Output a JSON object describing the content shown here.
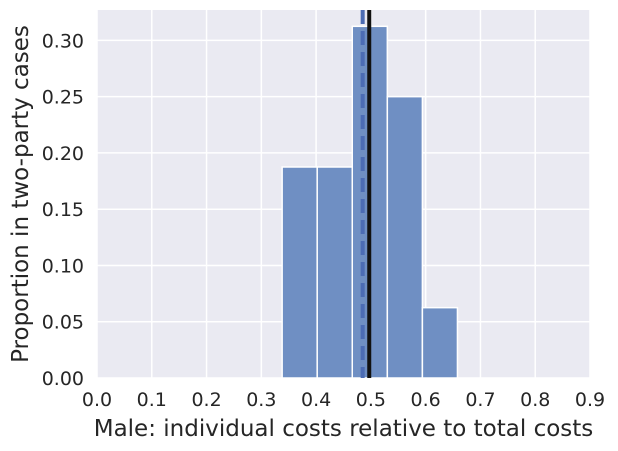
{
  "chart_data": {
    "type": "bar",
    "xlabel": "Male: individual costs relative to total costs",
    "ylabel": "Proportion in two-party cases",
    "xlim": [
      0.0,
      0.9
    ],
    "ylim": [
      0.0,
      0.327
    ],
    "xticks": [
      "0.0",
      "0.1",
      "0.2",
      "0.3",
      "0.4",
      "0.5",
      "0.6",
      "0.7",
      "0.8",
      "0.9"
    ],
    "yticks": [
      "0.00",
      "0.05",
      "0.10",
      "0.15",
      "0.20",
      "0.25",
      "0.30"
    ],
    "bins": [
      {
        "x0": 0.338,
        "x1": 0.402,
        "value": 0.1875
      },
      {
        "x0": 0.402,
        "x1": 0.466,
        "value": 0.1875
      },
      {
        "x0": 0.466,
        "x1": 0.53,
        "value": 0.3125
      },
      {
        "x0": 0.53,
        "x1": 0.594,
        "value": 0.25
      },
      {
        "x0": 0.594,
        "x1": 0.658,
        "value": 0.0625
      }
    ],
    "reference_lines": [
      {
        "style": "dashed",
        "x": 0.485,
        "color": "#4c6cb4"
      },
      {
        "style": "solid",
        "x": 0.497,
        "color": "#111111"
      }
    ],
    "grid": true,
    "colors": {
      "bar": "#6f8fc3",
      "background": "#eaeaf2",
      "grid": "#ffffff"
    }
  }
}
